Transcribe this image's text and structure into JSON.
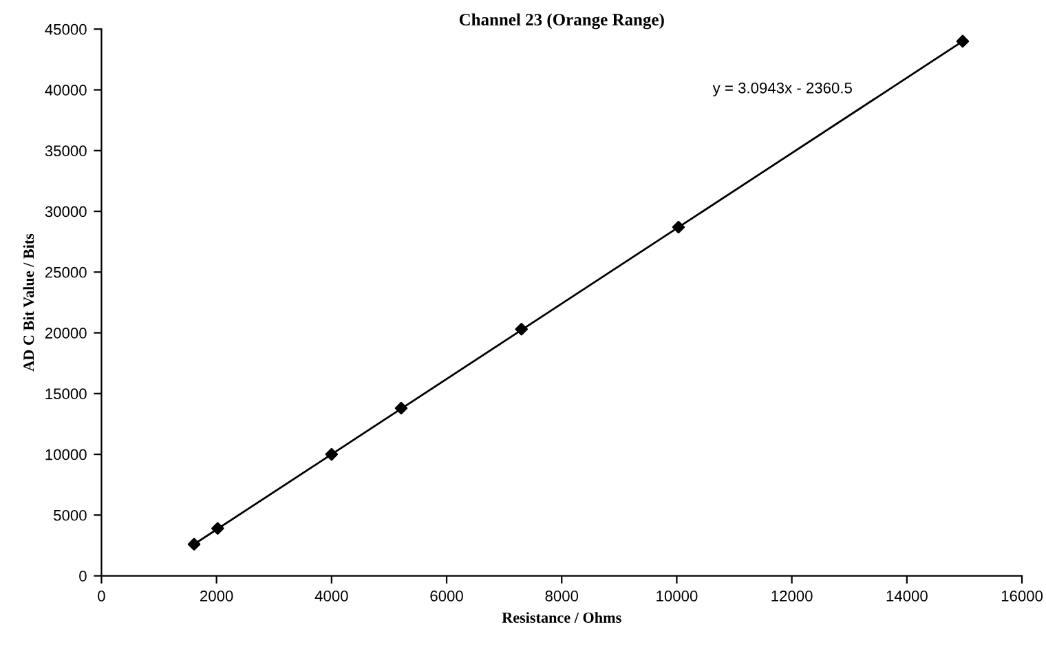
{
  "chart_data": {
    "type": "scatter",
    "title": "Channel 23 (Orange Range)",
    "xlabel": "Resistance / Ohms",
    "ylabel": "AD C Bit Value / Bits",
    "series": [
      {
        "color": "#000000",
        "marker": "diamond",
        "x": [
          1610,
          2020,
          4000,
          5210,
          7300,
          10030,
          14970
        ],
        "values": [
          2600,
          3900,
          10000,
          13800,
          20300,
          28700,
          44000
        ]
      },
      {
        "type": "line",
        "color": "#000000",
        "marker": "none",
        "x": [
          1610,
          14970
        ],
        "values": [
          2600,
          44000
        ]
      }
    ],
    "annotations": [
      "y = 3.0943x - 2360.5"
    ],
    "xlim": [
      0,
      16000
    ],
    "xticks": [
      0,
      2000,
      4000,
      6000,
      8000,
      10000,
      12000,
      14000,
      16000
    ],
    "ylim": [
      0,
      45000
    ],
    "yticks": [
      0,
      5000,
      10000,
      15000,
      20000,
      25000,
      30000,
      35000,
      40000,
      45000
    ],
    "grid": false,
    "legend": false
  }
}
